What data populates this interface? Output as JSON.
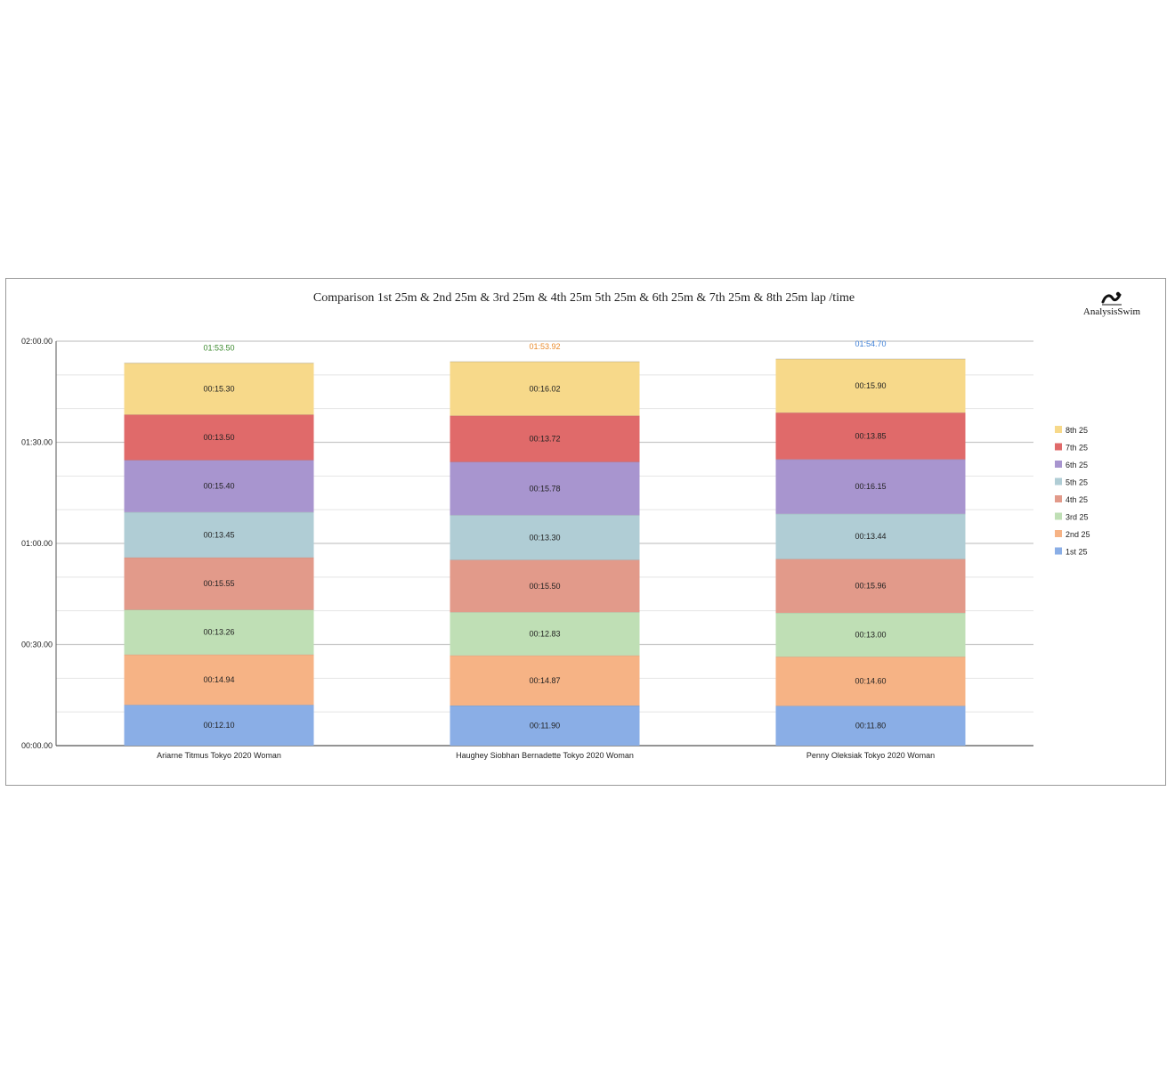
{
  "brand": {
    "name": "AnalysisSwim"
  },
  "chart_data": {
    "type": "bar",
    "stacked": true,
    "title": "Comparison 1st 25m & 2nd 25m & 3rd 25m & 4th 25m 5th 25m & 6th 25m & 7th 25m & 8th 25m lap /time",
    "xlabel": "",
    "ylabel": "",
    "categories": [
      "Ariarne Titmus Tokyo 2020 Woman",
      "Haughey Siobhan Bernadette Tokyo 2020 Woman",
      "Penny Oleksiak Tokyo 2020 Woman"
    ],
    "ylim": [
      0,
      120
    ],
    "yticks": [
      {
        "value": 0,
        "label": "00:00.00"
      },
      {
        "value": 30,
        "label": "00:30.00"
      },
      {
        "value": 60,
        "label": "01:00.00"
      },
      {
        "value": 90,
        "label": "01:30.00"
      },
      {
        "value": 120,
        "label": "02:00.00"
      }
    ],
    "grid": true,
    "legend": "right",
    "series": [
      {
        "name": "1st 25",
        "color": "#8aaee6",
        "values": [
          12.1,
          11.9,
          11.8
        ],
        "labels": [
          "00:12.10",
          "00:11.90",
          "00:11.80"
        ]
      },
      {
        "name": "2nd 25",
        "color": "#f6b385",
        "values": [
          14.94,
          14.87,
          14.6
        ],
        "labels": [
          "00:14.94",
          "00:14.87",
          "00:14.60"
        ]
      },
      {
        "name": "3rd 25",
        "color": "#bfdfb5",
        "values": [
          13.26,
          12.83,
          13.0
        ],
        "labels": [
          "00:13.26",
          "00:12.83",
          "00:13.00"
        ]
      },
      {
        "name": "4th 25",
        "color": "#e29a8a",
        "values": [
          15.55,
          15.5,
          15.96
        ],
        "labels": [
          "00:15.55",
          "00:15.50",
          "00:15.96"
        ]
      },
      {
        "name": "5th 25",
        "color": "#b0cdd5",
        "values": [
          13.45,
          13.3,
          13.44
        ],
        "labels": [
          "00:13.45",
          "00:13.30",
          "00:13.44"
        ]
      },
      {
        "name": "6th 25",
        "color": "#a895cf",
        "values": [
          15.4,
          15.78,
          16.15
        ],
        "labels": [
          "00:15.40",
          "00:15.78",
          "00:16.15"
        ]
      },
      {
        "name": "7th 25",
        "color": "#e06a6a",
        "values": [
          13.5,
          13.72,
          13.85
        ],
        "labels": [
          "00:13.50",
          "00:13.72",
          "00:13.85"
        ]
      },
      {
        "name": "8th 25",
        "color": "#f7d98a",
        "values": [
          15.3,
          16.02,
          15.9
        ],
        "labels": [
          "00:15.30",
          "00:16.02",
          "00:15.90"
        ]
      }
    ],
    "totals": [
      {
        "label": "01:53.50",
        "color": "#3c8a2e"
      },
      {
        "label": "01:53.92",
        "color": "#e98a2a"
      },
      {
        "label": "01:54.70",
        "color": "#3d7fd6"
      }
    ]
  }
}
